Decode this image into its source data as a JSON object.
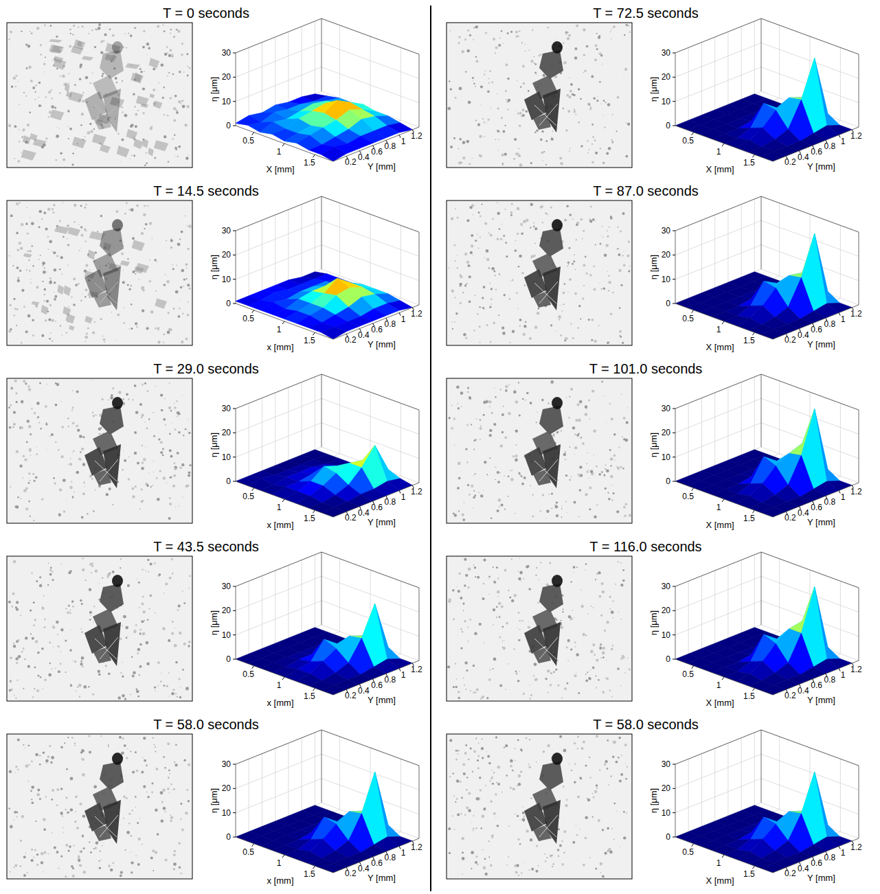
{
  "chart_data": [
    {
      "type": "surface",
      "title": "T = 0 seconds",
      "x_label": "X [mm]",
      "y_label": "Y [mm]",
      "z_label": "η [μm]",
      "xlim": [
        0.2,
        1.8
      ],
      "ylim": [
        0,
        1.3
      ],
      "zlim": [
        0,
        30
      ],
      "xticks": [
        0.5,
        1,
        1.5
      ],
      "yticks": [
        0.2,
        0.4,
        0.6,
        0.8,
        1,
        1.2
      ],
      "zticks": [
        0,
        10,
        20,
        30
      ],
      "x": [
        0.2,
        0.4,
        0.6,
        0.8,
        1.0,
        1.2,
        1.4,
        1.6,
        1.8
      ],
      "y": [
        0,
        0.2,
        0.4,
        0.6,
        0.8,
        1.0,
        1.2
      ],
      "z": [
        [
          1,
          2,
          1,
          2,
          1,
          2,
          1,
          1,
          0
        ],
        [
          2,
          1,
          3,
          2,
          2,
          3,
          1,
          2,
          1
        ],
        [
          1,
          3,
          2,
          4,
          3,
          4,
          2,
          1,
          1
        ],
        [
          2,
          2,
          3,
          5,
          6,
          5,
          3,
          2,
          1
        ],
        [
          1,
          2,
          4,
          6,
          9,
          7,
          5,
          2,
          1
        ],
        [
          1,
          1,
          3,
          4,
          6,
          5,
          4,
          2,
          1
        ],
        [
          0,
          1,
          2,
          2,
          3,
          2,
          2,
          1,
          0
        ]
      ]
    },
    {
      "type": "surface",
      "title": "T = 14.5 seconds",
      "x_label": "x [mm]",
      "y_label": "Y [mm]",
      "z_label": "η [μm]",
      "xlim": [
        0.2,
        1.8
      ],
      "ylim": [
        0,
        1.3
      ],
      "zlim": [
        0,
        30
      ],
      "xticks": [
        0.5,
        1,
        1.5
      ],
      "yticks": [
        0.2,
        0.4,
        0.6,
        0.8,
        1,
        1.2
      ],
      "zticks": [
        0,
        10,
        20,
        30
      ],
      "x": [
        0.2,
        0.4,
        0.6,
        0.8,
        1.0,
        1.2,
        1.4,
        1.6,
        1.8
      ],
      "y": [
        0,
        0.2,
        0.4,
        0.6,
        0.8,
        1.0,
        1.2
      ],
      "z": [
        [
          1,
          1,
          1,
          1,
          1,
          1,
          1,
          1,
          0
        ],
        [
          1,
          1,
          2,
          1,
          2,
          2,
          1,
          1,
          1
        ],
        [
          1,
          2,
          1,
          3,
          3,
          3,
          2,
          1,
          1
        ],
        [
          1,
          1,
          2,
          4,
          5,
          6,
          3,
          1,
          1
        ],
        [
          1,
          1,
          2,
          4,
          9,
          7,
          5,
          2,
          1
        ],
        [
          0,
          1,
          2,
          2,
          5,
          5,
          4,
          2,
          1
        ],
        [
          0,
          1,
          1,
          1,
          2,
          2,
          2,
          1,
          0
        ]
      ]
    },
    {
      "type": "surface",
      "title": "T = 29.0 seconds",
      "x_label": "x [mm]",
      "y_label": "Y [mm]",
      "z_label": "η [μm]",
      "xlim": [
        0.2,
        1.8
      ],
      "ylim": [
        0,
        1.3
      ],
      "zlim": [
        0,
        30
      ],
      "xticks": [
        0.5,
        1,
        1.5
      ],
      "yticks": [
        0.2,
        0.4,
        0.6,
        0.8,
        1,
        1.2
      ],
      "zticks": [
        0,
        10,
        20,
        30
      ],
      "x": [
        0.2,
        0.4,
        0.6,
        0.8,
        1.0,
        1.2,
        1.4,
        1.6,
        1.8
      ],
      "y": [
        0,
        0.2,
        0.4,
        0.6,
        0.8,
        1.0,
        1.2
      ],
      "z": [
        [
          0,
          0,
          0,
          0,
          0,
          0,
          0,
          0,
          0
        ],
        [
          0,
          1,
          0,
          1,
          1,
          1,
          0,
          0,
          0
        ],
        [
          0,
          0,
          1,
          1,
          3,
          3,
          1,
          0,
          0
        ],
        [
          0,
          0,
          1,
          2,
          7,
          6,
          3,
          1,
          0
        ],
        [
          0,
          0,
          1,
          2,
          5,
          8,
          8,
          1,
          0
        ],
        [
          0,
          0,
          0,
          1,
          2,
          7,
          15,
          2,
          0
        ],
        [
          0,
          0,
          0,
          0,
          1,
          1,
          3,
          1,
          0
        ]
      ]
    },
    {
      "type": "surface",
      "title": "T = 43.5 seconds",
      "x_label": "x [mm]",
      "y_label": "Y [mm]",
      "z_label": "η [μm]",
      "xlim": [
        0.2,
        1.8
      ],
      "ylim": [
        0,
        1.3
      ],
      "zlim": [
        0,
        30
      ],
      "xticks": [
        0.5,
        1,
        1.5
      ],
      "yticks": [
        0.2,
        0.4,
        0.6,
        0.8,
        1,
        1.2
      ],
      "zticks": [
        0,
        10,
        20,
        30
      ],
      "x": [
        0.2,
        0.4,
        0.6,
        0.8,
        1.0,
        1.2,
        1.4,
        1.6,
        1.8
      ],
      "y": [
        0,
        0.2,
        0.4,
        0.6,
        0.8,
        1.0,
        1.2
      ],
      "z": [
        [
          0,
          0,
          0,
          0,
          0,
          0,
          0,
          0,
          0
        ],
        [
          0,
          0,
          0,
          0,
          1,
          1,
          0,
          0,
          0
        ],
        [
          0,
          0,
          0,
          1,
          2,
          4,
          1,
          0,
          0
        ],
        [
          0,
          0,
          0,
          1,
          9,
          7,
          3,
          0,
          0
        ],
        [
          0,
          0,
          0,
          1,
          5,
          10,
          11,
          1,
          0
        ],
        [
          0,
          0,
          0,
          0,
          2,
          8,
          23,
          2,
          0
        ],
        [
          0,
          0,
          0,
          0,
          0,
          1,
          3,
          0,
          0
        ]
      ]
    },
    {
      "type": "surface",
      "title": "T = 58.0 seconds",
      "x_label": "x [mm]",
      "y_label": "Y [mm]",
      "z_label": "η [μm]",
      "xlim": [
        0.2,
        1.8
      ],
      "ylim": [
        0,
        1.3
      ],
      "zlim": [
        0,
        30
      ],
      "xticks": [
        0.5,
        1,
        1.5
      ],
      "yticks": [
        0.2,
        0.4,
        0.6,
        0.8,
        1,
        1.2
      ],
      "zticks": [
        0,
        10,
        20,
        30
      ],
      "x": [
        0.2,
        0.4,
        0.6,
        0.8,
        1.0,
        1.2,
        1.4,
        1.6,
        1.8
      ],
      "y": [
        0,
        0.2,
        0.4,
        0.6,
        0.8,
        1.0,
        1.2
      ],
      "z": [
        [
          0,
          0,
          0,
          0,
          0,
          0,
          0,
          0,
          0
        ],
        [
          0,
          0,
          0,
          0,
          0,
          1,
          0,
          0,
          0
        ],
        [
          0,
          0,
          0,
          0,
          2,
          4,
          1,
          0,
          0
        ],
        [
          0,
          0,
          0,
          1,
          9,
          8,
          3,
          0,
          0
        ],
        [
          0,
          0,
          0,
          1,
          5,
          11,
          12,
          1,
          0
        ],
        [
          0,
          0,
          0,
          0,
          2,
          9,
          27,
          2,
          0
        ],
        [
          0,
          0,
          0,
          0,
          0,
          1,
          3,
          0,
          0
        ]
      ]
    },
    {
      "type": "surface",
      "title": "T = 72.5 seconds",
      "x_label": "X [mm]",
      "y_label": "Y [mm]",
      "z_label": "η [μm]",
      "xlim": [
        0.2,
        1.8
      ],
      "ylim": [
        0,
        1.3
      ],
      "zlim": [
        0,
        30
      ],
      "xticks": [
        0.5,
        1,
        1.5
      ],
      "yticks": [
        0.2,
        0.4,
        0.6,
        0.8,
        1,
        1.2
      ],
      "zticks": [
        0,
        10,
        20,
        30
      ],
      "x": [
        0.2,
        0.4,
        0.6,
        0.8,
        1.0,
        1.2,
        1.4,
        1.6,
        1.8
      ],
      "y": [
        0,
        0.2,
        0.4,
        0.6,
        0.8,
        1.0,
        1.2
      ],
      "z": [
        [
          0,
          0,
          0,
          0,
          0,
          0,
          0,
          0,
          0
        ],
        [
          0,
          0,
          0,
          0,
          0,
          1,
          0,
          0,
          0
        ],
        [
          0,
          0,
          0,
          0,
          2,
          4,
          1,
          0,
          0
        ],
        [
          0,
          0,
          0,
          1,
          10,
          9,
          3,
          0,
          0
        ],
        [
          0,
          0,
          0,
          1,
          6,
          12,
          13,
          1,
          0
        ],
        [
          0,
          0,
          0,
          0,
          2,
          10,
          28,
          2,
          0
        ],
        [
          0,
          0,
          0,
          0,
          0,
          1,
          3,
          0,
          0
        ]
      ]
    },
    {
      "type": "surface",
      "title": "T = 87.0 seconds",
      "x_label": "X [mm]",
      "y_label": "Y [mm]",
      "z_label": "η [μm]",
      "xlim": [
        0.2,
        1.8
      ],
      "ylim": [
        0,
        1.3
      ],
      "zlim": [
        0,
        30
      ],
      "xticks": [
        0.5,
        1,
        1.5
      ],
      "yticks": [
        0.2,
        0.4,
        0.6,
        0.8,
        1,
        1.2
      ],
      "zticks": [
        0,
        10,
        20,
        30
      ],
      "x": [
        0.2,
        0.4,
        0.6,
        0.8,
        1.0,
        1.2,
        1.4,
        1.6,
        1.8
      ],
      "y": [
        0,
        0.2,
        0.4,
        0.6,
        0.8,
        1.0,
        1.2
      ],
      "z": [
        [
          0,
          0,
          0,
          0,
          0,
          0,
          0,
          0,
          0
        ],
        [
          0,
          0,
          0,
          0,
          0,
          1,
          0,
          0,
          0
        ],
        [
          0,
          0,
          0,
          0,
          2,
          4,
          1,
          0,
          0
        ],
        [
          0,
          0,
          0,
          1,
          10,
          9,
          3,
          0,
          0
        ],
        [
          0,
          0,
          0,
          1,
          7,
          12,
          13,
          1,
          0
        ],
        [
          0,
          0,
          0,
          0,
          3,
          11,
          29,
          2,
          0
        ],
        [
          0,
          0,
          0,
          0,
          0,
          1,
          3,
          0,
          0
        ]
      ]
    },
    {
      "type": "surface",
      "title": "T = 101.0 seconds",
      "x_label": "X [mm]",
      "y_label": "Y [mm]",
      "z_label": "η [μm]",
      "xlim": [
        0.2,
        1.8
      ],
      "ylim": [
        0,
        1.3
      ],
      "zlim": [
        0,
        30
      ],
      "xticks": [
        0.5,
        1,
        1.5
      ],
      "yticks": [
        0.2,
        0.4,
        0.6,
        0.8,
        1,
        1.2
      ],
      "zticks": [
        0,
        10,
        20,
        30
      ],
      "x": [
        0.2,
        0.4,
        0.6,
        0.8,
        1.0,
        1.2,
        1.4,
        1.6,
        1.8
      ],
      "y": [
        0,
        0.2,
        0.4,
        0.6,
        0.8,
        1.0,
        1.2
      ],
      "z": [
        [
          0,
          0,
          0,
          0,
          0,
          0,
          0,
          0,
          0
        ],
        [
          0,
          0,
          0,
          0,
          0,
          1,
          0,
          0,
          0
        ],
        [
          0,
          0,
          0,
          0,
          2,
          4,
          1,
          0,
          0
        ],
        [
          0,
          0,
          0,
          1,
          11,
          9,
          3,
          0,
          0
        ],
        [
          0,
          0,
          0,
          1,
          7,
          12,
          13,
          1,
          0
        ],
        [
          0,
          0,
          0,
          0,
          3,
          14,
          30,
          2,
          0
        ],
        [
          0,
          0,
          0,
          0,
          0,
          1,
          3,
          0,
          0
        ]
      ]
    },
    {
      "type": "surface",
      "title": "T = 116.0 seconds",
      "x_label": "X [mm]",
      "y_label": "Y [mm]",
      "z_label": "η [μm]",
      "xlim": [
        0.2,
        1.8
      ],
      "ylim": [
        0,
        1.3
      ],
      "zlim": [
        0,
        30
      ],
      "xticks": [
        0.5,
        1,
        1.5
      ],
      "yticks": [
        0.2,
        0.4,
        0.6,
        0.8,
        1,
        1.2
      ],
      "zticks": [
        0,
        10,
        20,
        30
      ],
      "x": [
        0.2,
        0.4,
        0.6,
        0.8,
        1.0,
        1.2,
        1.4,
        1.6,
        1.8
      ],
      "y": [
        0,
        0.2,
        0.4,
        0.6,
        0.8,
        1.0,
        1.2
      ],
      "z": [
        [
          0,
          0,
          0,
          0,
          0,
          0,
          0,
          0,
          0
        ],
        [
          0,
          0,
          0,
          0,
          0,
          1,
          0,
          0,
          0
        ],
        [
          0,
          0,
          0,
          0,
          2,
          4,
          1,
          0,
          0
        ],
        [
          0,
          0,
          0,
          1,
          11,
          9,
          3,
          0,
          0
        ],
        [
          0,
          0,
          0,
          1,
          7,
          13,
          13,
          1,
          0
        ],
        [
          0,
          0,
          0,
          0,
          3,
          14,
          30,
          2,
          0
        ],
        [
          0,
          0,
          0,
          0,
          0,
          1,
          3,
          0,
          0
        ]
      ]
    },
    {
      "type": "surface",
      "title": "T = 58.0 seconds",
      "x_label": "X [mm]",
      "y_label": "Y [mm]",
      "z_label": "η [μm]",
      "xlim": [
        0.2,
        1.8
      ],
      "ylim": [
        0,
        1.3
      ],
      "zlim": [
        0,
        30
      ],
      "xticks": [
        0.5,
        1,
        1.5
      ],
      "yticks": [
        0.2,
        0.4,
        0.6,
        0.8,
        1,
        1.2
      ],
      "zticks": [
        0,
        10,
        20,
        30
      ],
      "x": [
        0.2,
        0.4,
        0.6,
        0.8,
        1.0,
        1.2,
        1.4,
        1.6,
        1.8
      ],
      "y": [
        0,
        0.2,
        0.4,
        0.6,
        0.8,
        1.0,
        1.2
      ],
      "z": [
        [
          0,
          0,
          0,
          0,
          0,
          0,
          0,
          0,
          0
        ],
        [
          0,
          0,
          0,
          0,
          0,
          1,
          0,
          0,
          0
        ],
        [
          0,
          0,
          0,
          0,
          2,
          4,
          1,
          0,
          0
        ],
        [
          0,
          0,
          0,
          1,
          9,
          8,
          3,
          0,
          0
        ],
        [
          0,
          0,
          0,
          1,
          5,
          11,
          12,
          1,
          0
        ],
        [
          0,
          0,
          0,
          0,
          2,
          9,
          27,
          2,
          0
        ],
        [
          0,
          0,
          0,
          0,
          0,
          1,
          3,
          0,
          0
        ]
      ]
    }
  ]
}
